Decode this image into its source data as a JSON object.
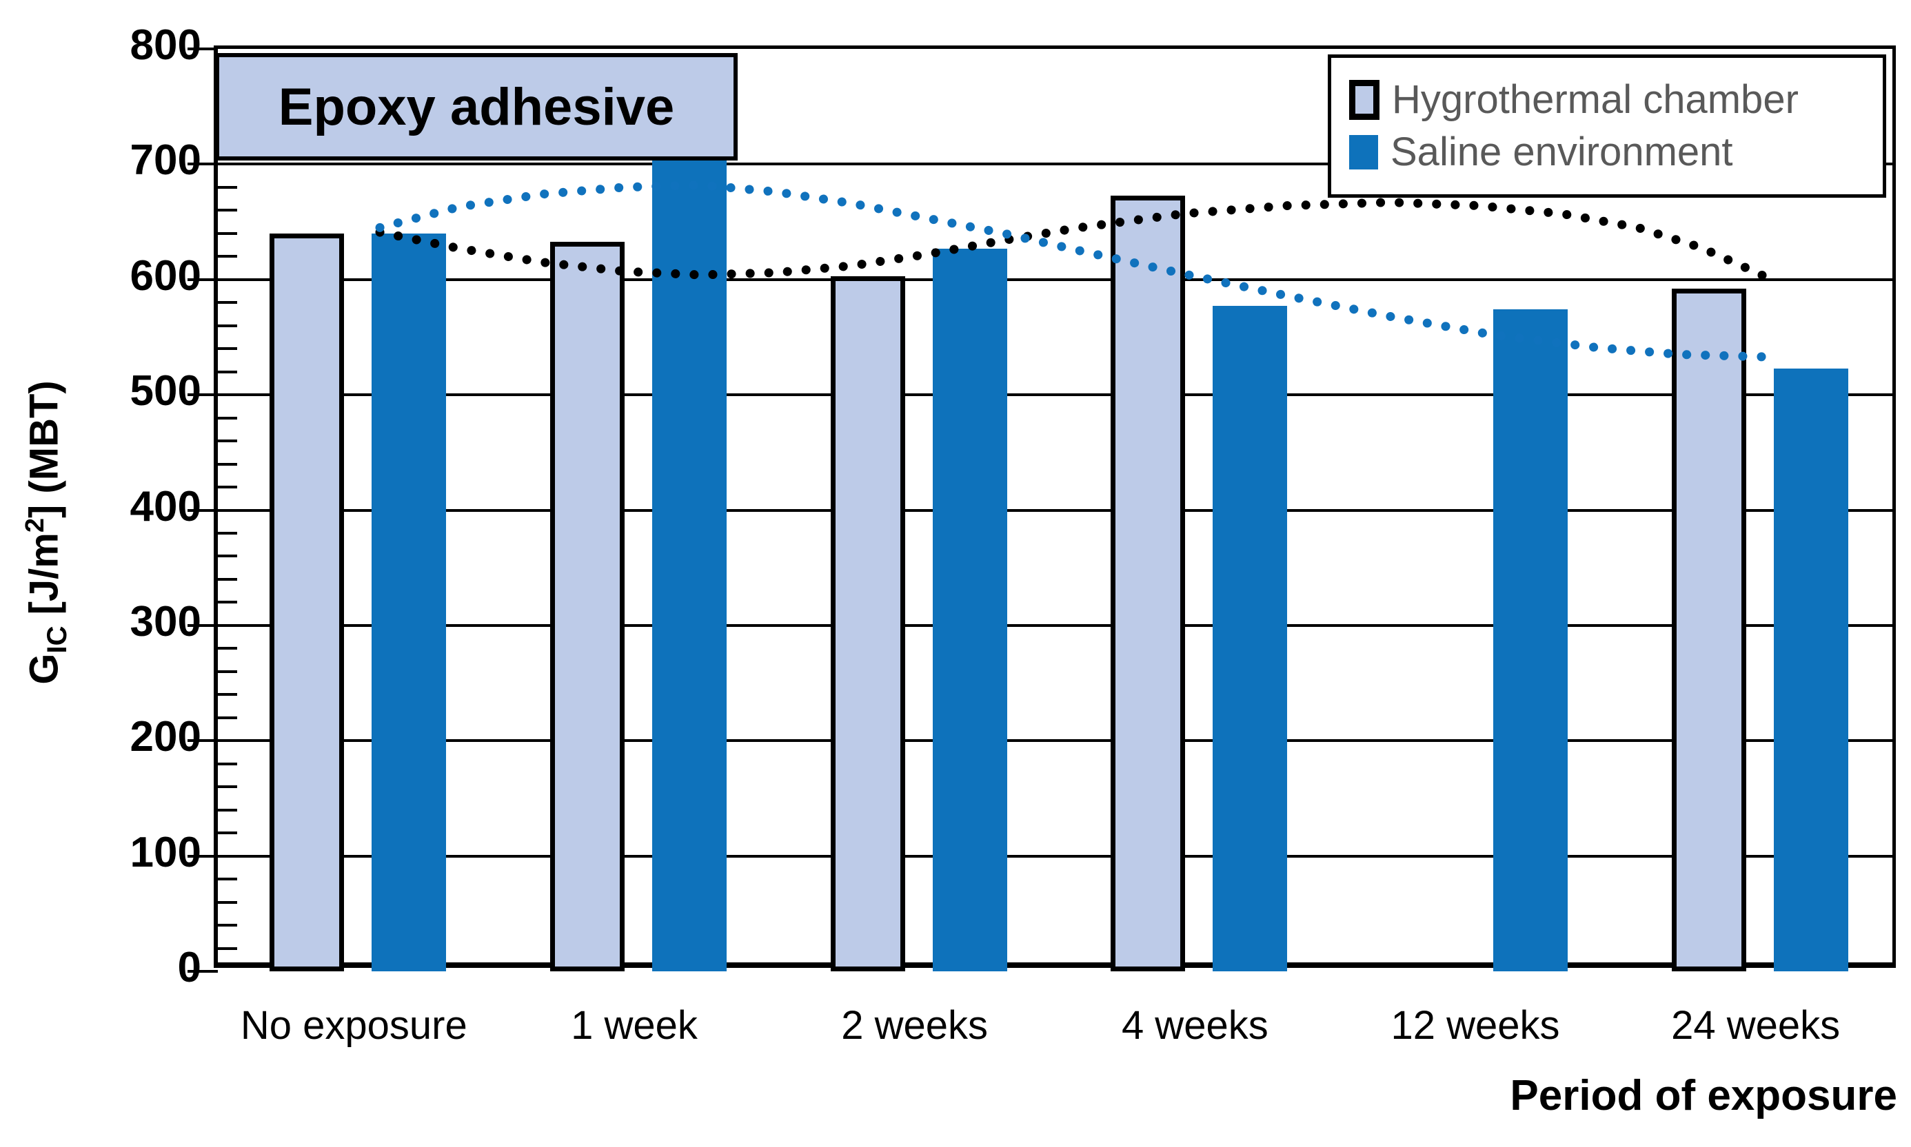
{
  "chart_data": {
    "type": "bar",
    "title_box": "Epoxy adhesive",
    "xlabel": "Period of exposure",
    "ylabel_parts": {
      "g": "G",
      "sub": "IC",
      "mid": " [J/m",
      "sup": "2",
      "end": "] (MBT)"
    },
    "categories": [
      "No exposure",
      "1 week",
      "2 weeks",
      "4 weeks",
      "12 weeks",
      "24 weeks"
    ],
    "series": [
      {
        "name": "Hygrothermal chamber",
        "color": "#bdcbe8",
        "border_color": "#000000",
        "values": [
          640,
          633,
          603,
          673,
          null,
          592
        ]
      },
      {
        "name": "Saline environment",
        "color": "#0e72bb",
        "border_color": null,
        "values": [
          640,
          704,
          627,
          577,
          574,
          523
        ]
      }
    ],
    "trendlines": [
      {
        "series": "Hygrothermal chamber",
        "color": "#000000",
        "style": "dotted",
        "points": [
          [
            235,
            641
          ],
          [
            350,
            627
          ],
          [
            470,
            615
          ],
          [
            590,
            607
          ],
          [
            700,
            604
          ],
          [
            810,
            606
          ],
          [
            920,
            612
          ],
          [
            1030,
            622
          ],
          [
            1140,
            634
          ],
          [
            1250,
            645
          ],
          [
            1400,
            657
          ],
          [
            1550,
            664
          ],
          [
            1700,
            667
          ],
          [
            1830,
            664
          ],
          [
            1950,
            657
          ],
          [
            2060,
            645
          ],
          [
            2150,
            628
          ],
          [
            2210,
            612
          ],
          [
            2250,
            601
          ]
        ]
      },
      {
        "series": "Saline environment",
        "color": "#1072bd",
        "style": "dotted",
        "points": [
          [
            235,
            645
          ],
          [
            350,
            663
          ],
          [
            470,
            674
          ],
          [
            590,
            680
          ],
          [
            700,
            682
          ],
          [
            810,
            676
          ],
          [
            920,
            666
          ],
          [
            1030,
            653
          ],
          [
            1140,
            640
          ],
          [
            1250,
            625
          ],
          [
            1400,
            605
          ],
          [
            1550,
            586
          ],
          [
            1700,
            568
          ],
          [
            1850,
            552
          ],
          [
            2000,
            541
          ],
          [
            2120,
            535
          ],
          [
            2240,
            533
          ]
        ]
      }
    ],
    "ylim": [
      0,
      800
    ],
    "ytick_step": 100,
    "yticks": [
      0,
      100,
      200,
      300,
      400,
      500,
      600,
      700,
      800
    ],
    "minor_tick_step": 20,
    "grid": "horizontal-major",
    "legend_position": "top-right"
  },
  "legend": {
    "items": [
      {
        "label": "Hygrothermal chamber",
        "swatch_color": "#bdcbe8",
        "swatch_border": "#000000"
      },
      {
        "label": "Saline environment",
        "swatch_color": "#0e72bb",
        "swatch_border": null
      }
    ]
  },
  "colors": {
    "hygrothermal_fill": "#bdcbe8",
    "saline_fill": "#0e72bb",
    "trend_black": "#000000",
    "trend_blue": "#1072bd",
    "legend_text": "#595959",
    "axis": "#000000",
    "background": "#ffffff"
  }
}
